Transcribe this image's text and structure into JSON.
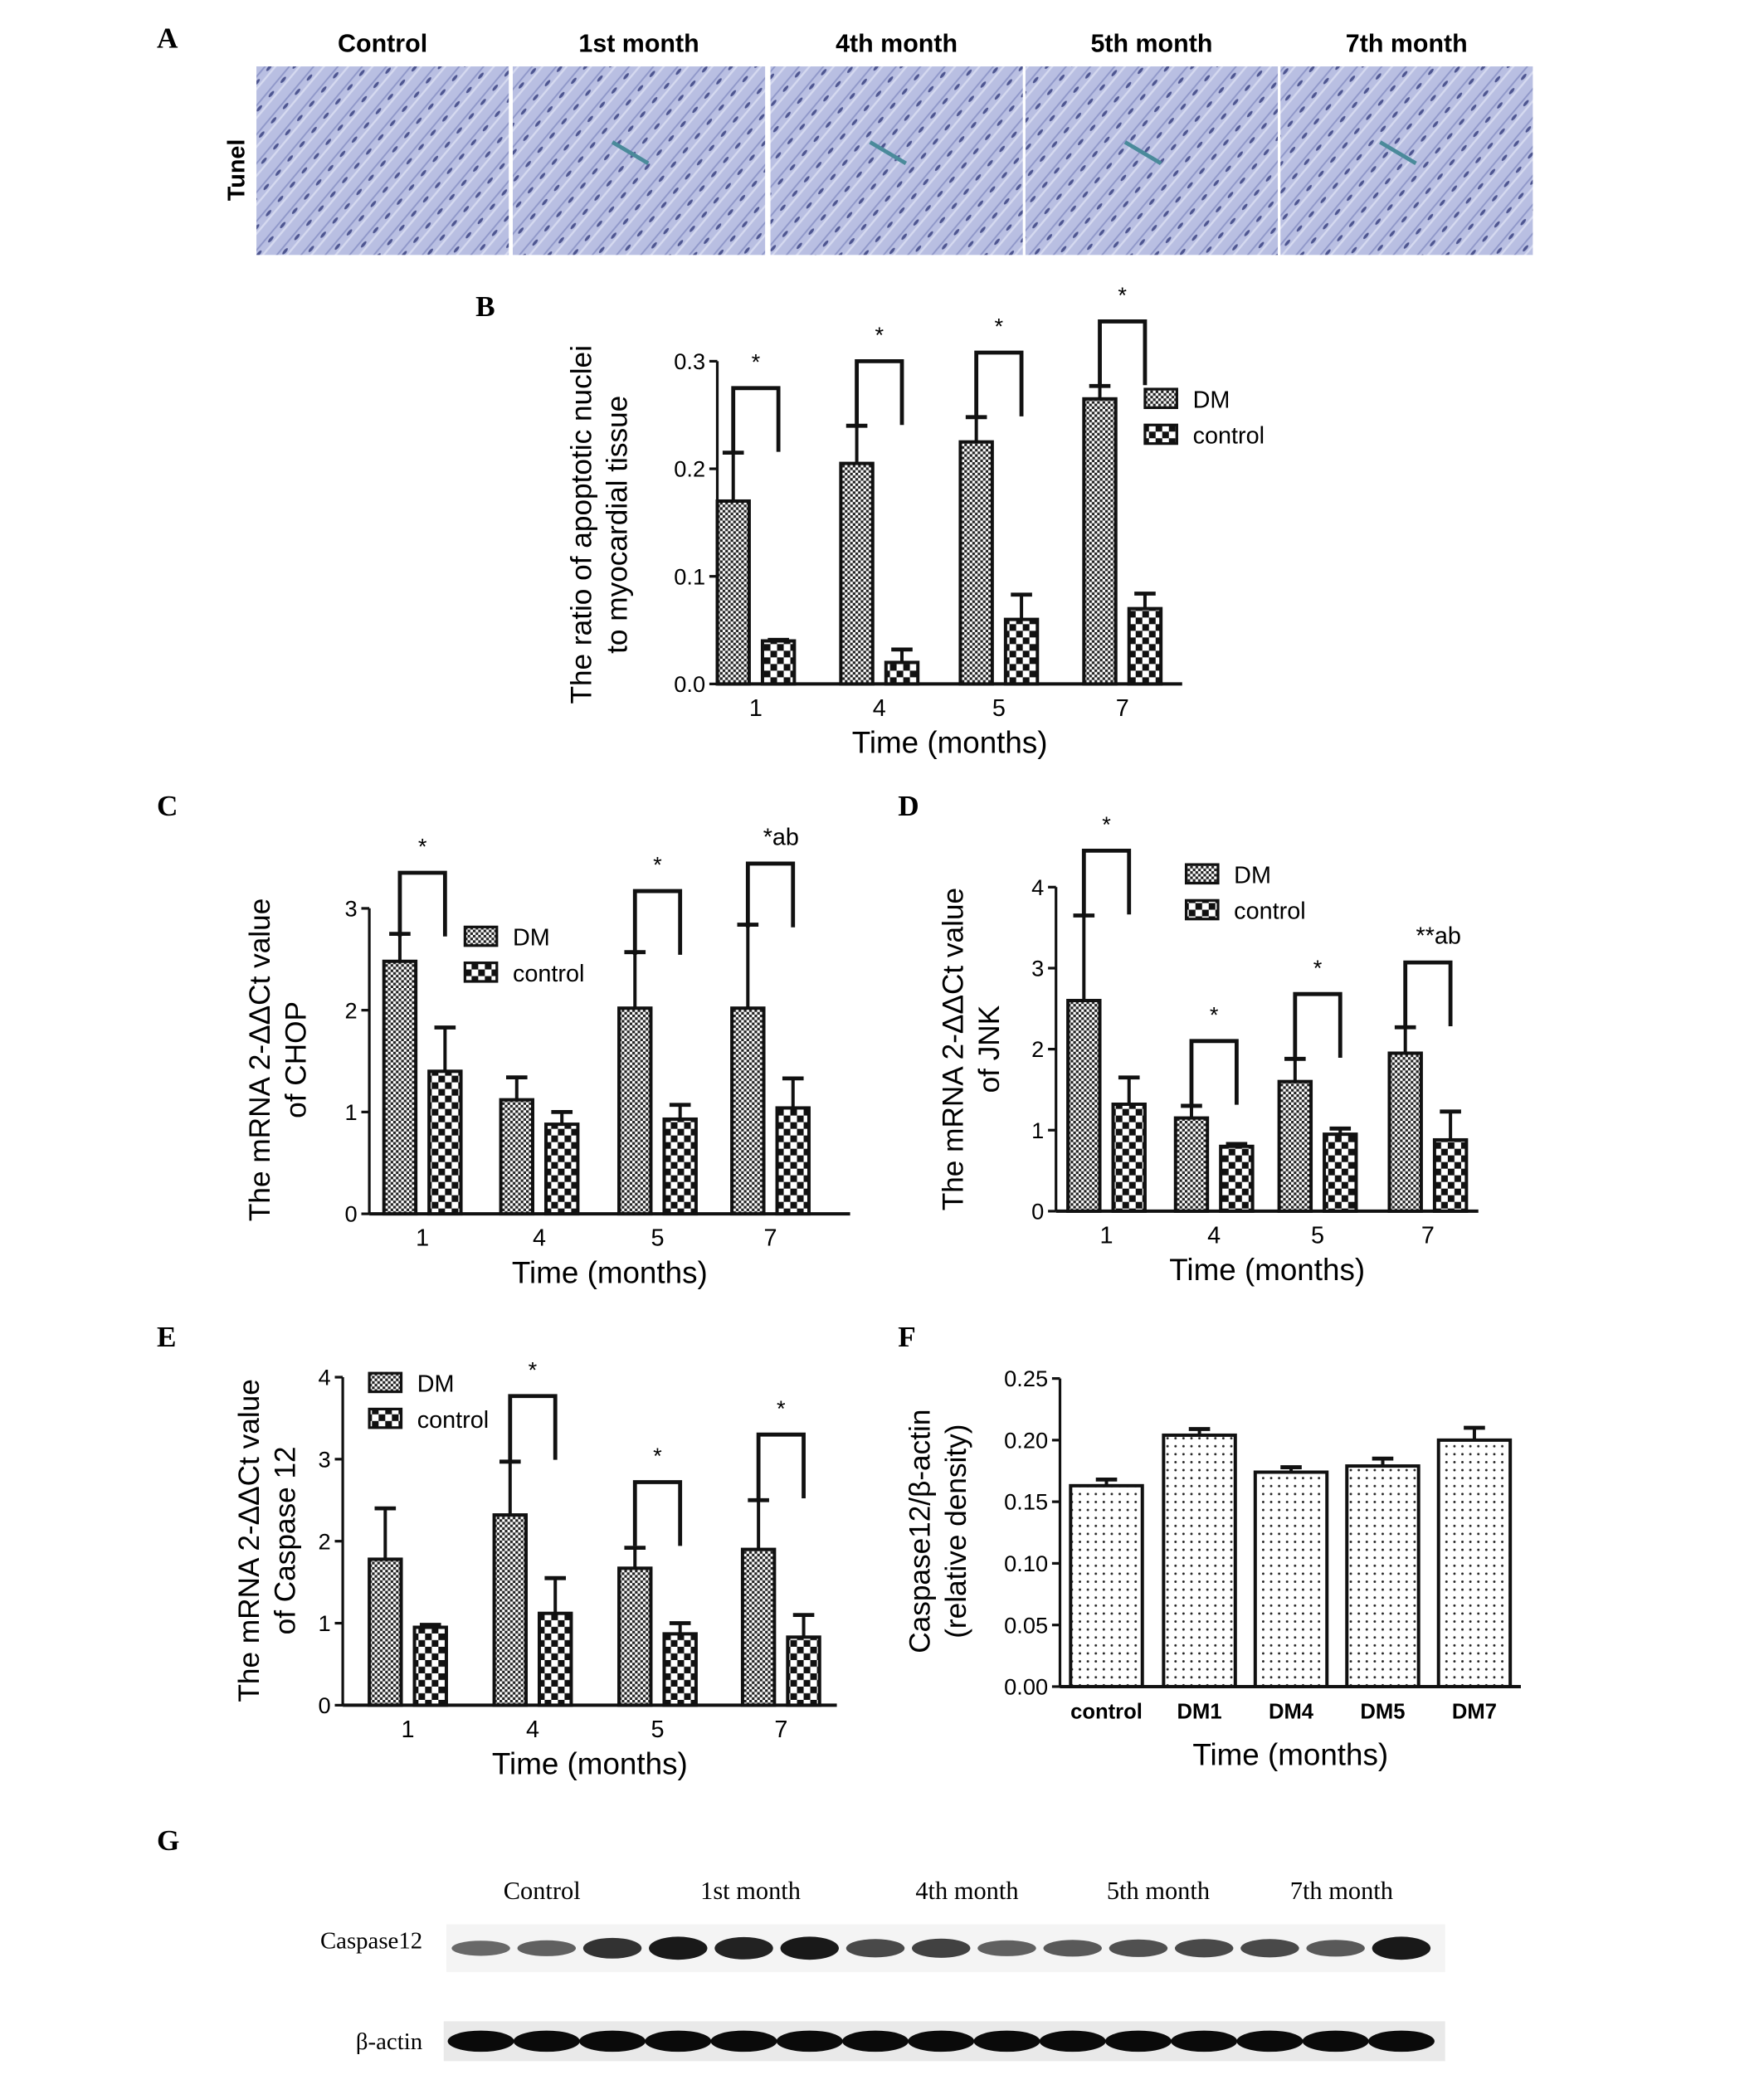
{
  "panel_labels": {
    "A": "A",
    "B": "B",
    "C": "C",
    "D": "D",
    "E": "E",
    "F": "F",
    "G": "G"
  },
  "panel_a": {
    "row_label": "Tunel",
    "columns": [
      "Control",
      "1st month",
      "4th month",
      "5th month",
      "7th month"
    ],
    "arrow_color": "#4a8a9a",
    "tissue_color": "#b7bde0"
  },
  "chart_data": [
    {
      "id": "B",
      "type": "bar",
      "xlabel": "Time (months)",
      "ylabel": [
        "The ratio of apoptotic nuclei",
        "to myocardial tissue"
      ],
      "categories": [
        "1",
        "4",
        "5",
        "7"
      ],
      "ylim": [
        0,
        0.3
      ],
      "yticks": [
        "0.0",
        "0.1",
        "0.2",
        "0.3"
      ],
      "ytick_values": [
        0,
        0.1,
        0.2,
        0.3
      ],
      "series": [
        {
          "name": "DM",
          "values": [
            0.17,
            0.205,
            0.225,
            0.265
          ],
          "error_upper": [
            0.215,
            0.24,
            0.248,
            0.277
          ]
        },
        {
          "name": "control",
          "values": [
            0.04,
            0.02,
            0.06,
            0.07
          ],
          "error_upper": [
            0.041,
            0.032,
            0.083,
            0.084
          ]
        }
      ],
      "annotations": [
        "*",
        "*",
        "*",
        "*"
      ],
      "legend": "top-right"
    },
    {
      "id": "C",
      "type": "bar",
      "xlabel": "Time (months)",
      "ylabel": [
        "The mRNA 2-ΔΔCt value",
        "of CHOP"
      ],
      "categories": [
        "1",
        "4",
        "5",
        "7"
      ],
      "ylim": [
        0,
        3
      ],
      "yticks": [
        "0",
        "1",
        "2",
        "3"
      ],
      "ytick_values": [
        0,
        1,
        2,
        3
      ],
      "series": [
        {
          "name": "DM",
          "values": [
            2.48,
            1.12,
            2.02,
            2.02
          ],
          "error_upper": [
            2.75,
            1.34,
            2.57,
            2.84
          ]
        },
        {
          "name": "control",
          "values": [
            1.4,
            0.88,
            0.93,
            1.04
          ],
          "error_upper": [
            1.83,
            1.0,
            1.07,
            1.33
          ]
        }
      ],
      "annotations": [
        "*",
        "",
        "*",
        "*ab"
      ],
      "legend": "top-center"
    },
    {
      "id": "D",
      "type": "bar",
      "xlabel": "Time (months)",
      "ylabel": [
        "The mRNA 2-ΔΔCt value",
        "of JNK"
      ],
      "categories": [
        "1",
        "4",
        "5",
        "7"
      ],
      "ylim": [
        0,
        4
      ],
      "yticks": [
        "0",
        "1",
        "2",
        "3",
        "4"
      ],
      "ytick_values": [
        0,
        1,
        2,
        3,
        4
      ],
      "series": [
        {
          "name": "DM",
          "values": [
            2.6,
            1.15,
            1.6,
            1.95
          ],
          "error_upper": [
            3.65,
            1.3,
            1.88,
            2.27
          ]
        },
        {
          "name": "control",
          "values": [
            1.32,
            0.8,
            0.95,
            0.88
          ],
          "error_upper": [
            1.65,
            0.83,
            1.02,
            1.23
          ]
        }
      ],
      "annotations": [
        "*",
        "*",
        "*",
        "**ab"
      ],
      "legend": "top-center"
    },
    {
      "id": "E",
      "type": "bar",
      "xlabel": "Time (months)",
      "ylabel": [
        "The mRNA 2-ΔΔCt value",
        "of Caspase 12"
      ],
      "categories": [
        "1",
        "4",
        "5",
        "7"
      ],
      "ylim": [
        0,
        4
      ],
      "yticks": [
        "0",
        "1",
        "2",
        "3",
        "4"
      ],
      "ytick_values": [
        0,
        1,
        2,
        3,
        4
      ],
      "series": [
        {
          "name": "DM",
          "values": [
            1.78,
            2.32,
            1.67,
            1.9
          ],
          "error_upper": [
            2.4,
            2.97,
            1.92,
            2.5
          ]
        },
        {
          "name": "control",
          "values": [
            0.95,
            1.12,
            0.87,
            0.83
          ],
          "error_upper": [
            0.98,
            1.55,
            1.0,
            1.1
          ]
        }
      ],
      "annotations": [
        "",
        "*",
        "*",
        "*"
      ],
      "legend": "top-left"
    },
    {
      "id": "F",
      "type": "bar",
      "xlabel": "Time (months)",
      "ylabel": [
        "Caspase12/β-actin",
        "(relative density)"
      ],
      "categories": [
        "control",
        "DM1",
        "DM4",
        "DM5",
        "DM7"
      ],
      "ylim": [
        0,
        0.25
      ],
      "yticks": [
        "0.00",
        "0.05",
        "0.10",
        "0.15",
        "0.20",
        "0.25"
      ],
      "ytick_values": [
        0,
        0.05,
        0.1,
        0.15,
        0.2,
        0.25
      ],
      "series": [
        {
          "values": [
            0.163,
            0.204,
            0.174,
            0.179,
            0.2
          ],
          "error_upper": [
            0.168,
            0.209,
            0.178,
            0.185,
            0.21
          ]
        }
      ]
    }
  ],
  "panel_g": {
    "groups": [
      "Control",
      "1st month",
      "4th month",
      "5th month",
      "7th month"
    ],
    "rows": [
      "Caspase12",
      "β-actin"
    ],
    "caspase12_band_intensity": [
      0.45,
      0.5,
      0.8,
      0.95,
      0.9,
      0.95,
      0.65,
      0.7,
      0.5,
      0.55,
      0.6,
      0.65,
      0.65,
      0.55,
      0.95
    ],
    "actin_band_intensity": [
      1,
      1,
      1,
      1,
      1,
      1,
      1,
      1,
      1,
      1,
      1,
      1,
      1,
      1,
      1
    ]
  }
}
